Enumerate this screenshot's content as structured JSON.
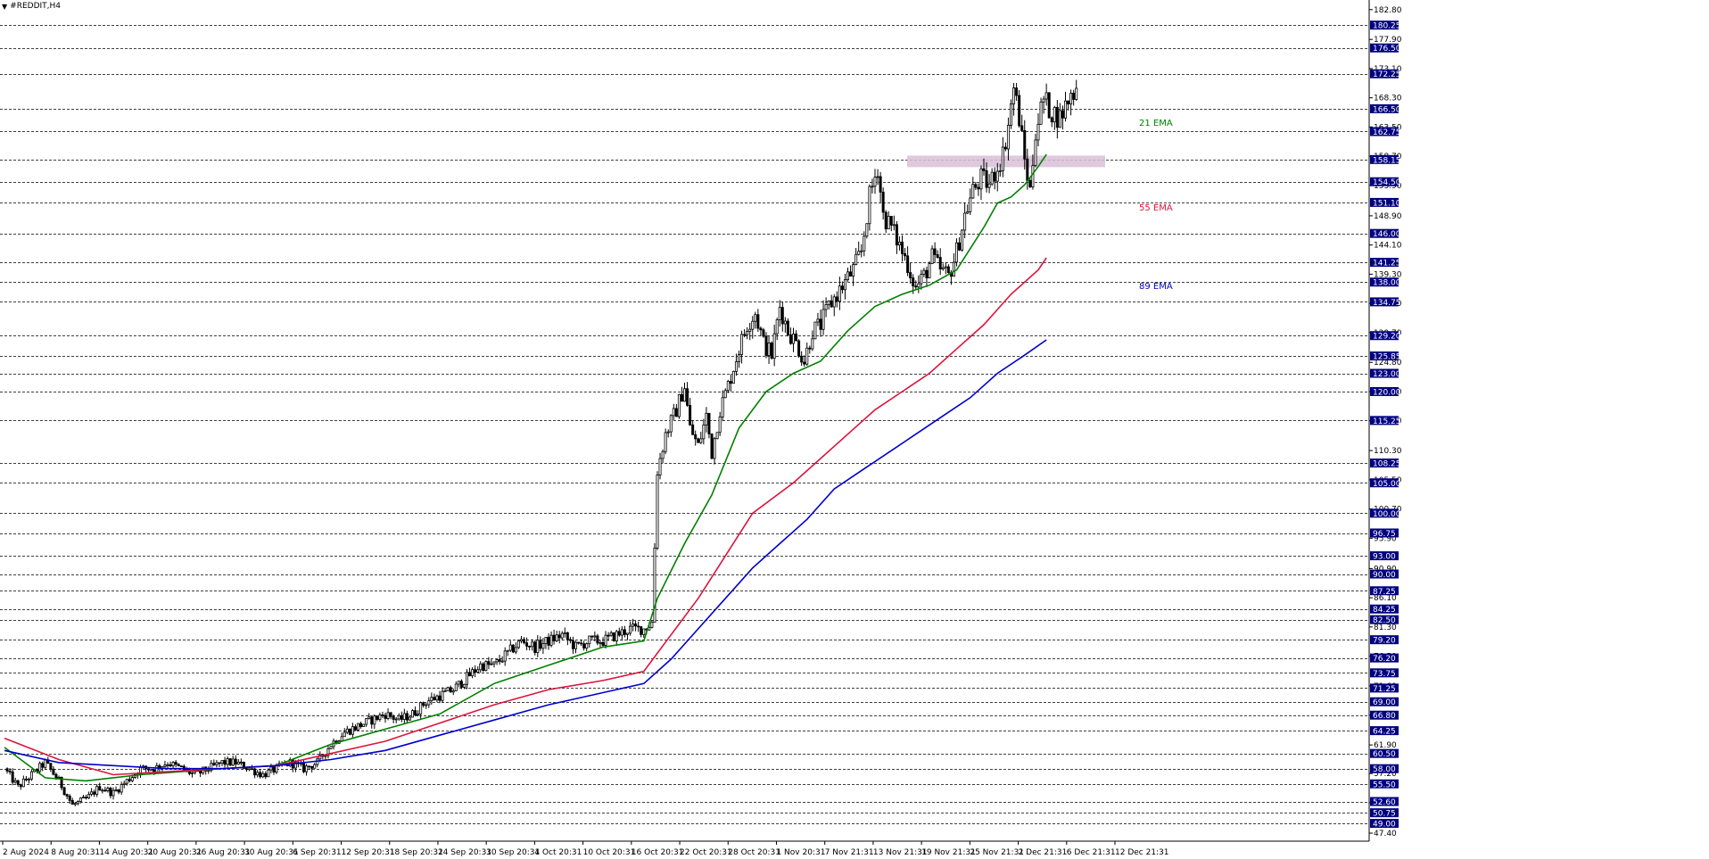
{
  "symbol_title": "#REDDIT,H4",
  "colors": {
    "background": "#ffffff",
    "bull_candle": "#ffffff",
    "bear_candle": "#000000",
    "ema21": "#008000",
    "ema55": "#dc143c",
    "ema89": "#0000cd",
    "zone": "#d8bfd8",
    "level_label_bg": "#000080"
  },
  "chart_data": {
    "type": "candlestick",
    "title": "#REDDIT,H4",
    "ylim": [
      47.4,
      183.5
    ],
    "y_ticks": [
      "182.80",
      "177.90",
      "173.10",
      "168.30",
      "163.50",
      "158.70",
      "153.90",
      "148.90",
      "144.10",
      "139.30",
      "134.50",
      "129.70",
      "124.80",
      "120.00",
      "115.20",
      "110.30",
      "105.50",
      "100.70",
      "95.90",
      "90.90",
      "86.10",
      "81.30",
      "76.50",
      "71.60",
      "66.80",
      "61.90",
      "57.20",
      "52.40",
      "47.40"
    ],
    "level_lines": [
      180.25,
      176.5,
      172.25,
      166.5,
      162.75,
      158.15,
      154.5,
      151.1,
      146.0,
      141.25,
      138.0,
      134.75,
      129.2,
      125.85,
      123.0,
      120.0,
      115.25,
      108.25,
      105.0,
      100.0,
      96.75,
      93.0,
      90.0,
      87.25,
      84.25,
      82.5,
      79.2,
      76.2,
      73.75,
      71.25,
      69.0,
      66.8,
      64.25,
      60.5,
      58.0,
      55.5,
      52.6,
      50.75,
      49.0
    ],
    "level_labels": [
      "180.25",
      "176.50",
      "172.25",
      "166.50",
      "162.75",
      "158.15",
      "154.50",
      "151.10",
      "146.00",
      "141.25",
      "138.00",
      "134.75",
      "129.20",
      "125.85",
      "123.00",
      "120.00",
      "115.25",
      "108.25",
      "105.00",
      "100.00",
      "96.75",
      "93.00",
      "90.00",
      "87.25",
      "84.25",
      "82.50",
      "79.20",
      "76.20",
      "73.75",
      "71.25",
      "69.00",
      "66.80",
      "64.25",
      "60.50",
      "58.00",
      "55.50",
      "52.60",
      "50.75",
      "49.00"
    ],
    "x_labels": [
      "2 Aug 2024",
      "8 Aug 20:31",
      "14 Aug 20:31",
      "20 Aug 20:31",
      "26 Aug 20:31",
      "30 Aug 20:31",
      "6 Sep 20:31",
      "12 Sep 20:31",
      "18 Sep 20:31",
      "24 Sep 20:31",
      "30 Sep 20:31",
      "4 Oct 20:31",
      "10 Oct 20:31",
      "16 Oct 20:31",
      "22 Oct 20:31",
      "28 Oct 20:31",
      "1 Nov 20:31",
      "7 Nov 21:31",
      "13 Nov 21:31",
      "19 Nov 21:31",
      "25 Nov 21:31",
      "2 Dec 21:31",
      "6 Dec 21:31",
      "12 Dec 21:31"
    ],
    "close_path": [
      [
        0,
        58
      ],
      [
        5,
        55
      ],
      [
        10,
        57
      ],
      [
        15,
        59
      ],
      [
        20,
        56
      ],
      [
        25,
        52
      ],
      [
        30,
        53
      ],
      [
        35,
        55
      ],
      [
        40,
        54
      ],
      [
        45,
        56
      ],
      [
        50,
        58
      ],
      [
        55,
        58
      ],
      [
        60,
        59
      ],
      [
        65,
        58
      ],
      [
        70,
        57
      ],
      [
        75,
        58
      ],
      [
        80,
        59
      ],
      [
        85,
        59
      ],
      [
        90,
        58
      ],
      [
        95,
        57
      ],
      [
        100,
        58
      ],
      [
        105,
        59
      ],
      [
        110,
        58
      ],
      [
        115,
        59
      ],
      [
        120,
        62
      ],
      [
        125,
        64
      ],
      [
        130,
        65
      ],
      [
        135,
        66
      ],
      [
        140,
        67
      ],
      [
        145,
        66
      ],
      [
        150,
        67
      ],
      [
        155,
        69
      ],
      [
        160,
        70
      ],
      [
        165,
        71
      ],
      [
        170,
        73
      ],
      [
        175,
        75
      ],
      [
        180,
        75
      ],
      [
        185,
        77
      ],
      [
        190,
        79
      ],
      [
        195,
        78
      ],
      [
        200,
        79
      ],
      [
        205,
        80
      ],
      [
        210,
        78
      ],
      [
        215,
        79
      ],
      [
        220,
        79
      ],
      [
        225,
        80
      ],
      [
        230,
        81
      ],
      [
        235,
        81
      ],
      [
        238,
        82
      ],
      [
        240,
        107
      ],
      [
        243,
        113
      ],
      [
        247,
        117
      ],
      [
        250,
        121
      ],
      [
        252,
        114
      ],
      [
        255,
        111
      ],
      [
        258,
        116
      ],
      [
        260,
        110
      ],
      [
        263,
        117
      ],
      [
        266,
        121
      ],
      [
        268,
        124
      ],
      [
        270,
        127
      ],
      [
        273,
        131
      ],
      [
        276,
        133
      ],
      [
        279,
        128
      ],
      [
        282,
        126
      ],
      [
        285,
        134
      ],
      [
        288,
        130
      ],
      [
        291,
        128
      ],
      [
        294,
        125
      ],
      [
        297,
        130
      ],
      [
        300,
        131
      ],
      [
        303,
        134
      ],
      [
        306,
        136
      ],
      [
        309,
        138
      ],
      [
        312,
        140
      ],
      [
        315,
        143
      ],
      [
        318,
        152
      ],
      [
        321,
        157
      ],
      [
        323,
        149
      ],
      [
        326,
        147
      ],
      [
        329,
        144
      ],
      [
        332,
        141
      ],
      [
        335,
        137
      ],
      [
        338,
        139
      ],
      [
        341,
        142
      ],
      [
        344,
        140
      ],
      [
        347,
        139
      ],
      [
        350,
        143
      ],
      [
        353,
        149
      ],
      [
        356,
        153
      ],
      [
        359,
        155
      ],
      [
        362,
        154
      ],
      [
        365,
        157
      ],
      [
        367,
        159
      ],
      [
        369,
        164
      ],
      [
        371,
        170
      ],
      [
        373,
        165
      ],
      [
        375,
        158
      ],
      [
        377,
        153
      ],
      [
        379,
        163
      ],
      [
        382,
        168
      ],
      [
        385,
        166
      ],
      [
        388,
        165
      ],
      [
        391,
        168
      ],
      [
        394,
        170
      ]
    ],
    "series": [
      {
        "name": "21 EMA",
        "values": [
          [
            0,
            61.5
          ],
          [
            15,
            56.5
          ],
          [
            30,
            56
          ],
          [
            50,
            57
          ],
          [
            80,
            58
          ],
          [
            100,
            58.5
          ],
          [
            120,
            62
          ],
          [
            140,
            64.5
          ],
          [
            160,
            67
          ],
          [
            180,
            72
          ],
          [
            200,
            75
          ],
          [
            220,
            78
          ],
          [
            235,
            79
          ],
          [
            240,
            86
          ],
          [
            250,
            95
          ],
          [
            260,
            103
          ],
          [
            270,
            114
          ],
          [
            280,
            120
          ],
          [
            290,
            123
          ],
          [
            300,
            125
          ],
          [
            310,
            130
          ],
          [
            320,
            134
          ],
          [
            330,
            136
          ],
          [
            340,
            137.5
          ],
          [
            350,
            140
          ],
          [
            360,
            147
          ],
          [
            365,
            151
          ],
          [
            370,
            152
          ],
          [
            375,
            154
          ],
          [
            380,
            157
          ],
          [
            383,
            159
          ]
        ]
      },
      {
        "name": "55 EMA",
        "values": [
          [
            0,
            63
          ],
          [
            20,
            59.5
          ],
          [
            40,
            57
          ],
          [
            60,
            57.5
          ],
          [
            80,
            58
          ],
          [
            100,
            58.5
          ],
          [
            120,
            60.5
          ],
          [
            140,
            62.5
          ],
          [
            160,
            65.5
          ],
          [
            180,
            68.5
          ],
          [
            200,
            71
          ],
          [
            220,
            72.5
          ],
          [
            235,
            74
          ],
          [
            245,
            80
          ],
          [
            255,
            86
          ],
          [
            265,
            93
          ],
          [
            275,
            100
          ],
          [
            290,
            105
          ],
          [
            300,
            109
          ],
          [
            310,
            113
          ],
          [
            320,
            117
          ],
          [
            330,
            120
          ],
          [
            340,
            123
          ],
          [
            350,
            127
          ],
          [
            360,
            131
          ],
          [
            370,
            136
          ],
          [
            380,
            140
          ],
          [
            383,
            142
          ]
        ]
      },
      {
        "name": "89 EMA",
        "values": [
          [
            0,
            61
          ],
          [
            20,
            59
          ],
          [
            40,
            58.5
          ],
          [
            60,
            58
          ],
          [
            80,
            58
          ],
          [
            100,
            58.5
          ],
          [
            120,
            59.5
          ],
          [
            140,
            61
          ],
          [
            160,
            63.5
          ],
          [
            180,
            66
          ],
          [
            200,
            68.5
          ],
          [
            220,
            70.5
          ],
          [
            235,
            72
          ],
          [
            245,
            76
          ],
          [
            255,
            81
          ],
          [
            265,
            86
          ],
          [
            275,
            91
          ],
          [
            285,
            95
          ],
          [
            295,
            99
          ],
          [
            305,
            104
          ],
          [
            315,
            107
          ],
          [
            325,
            110
          ],
          [
            335,
            113
          ],
          [
            345,
            116
          ],
          [
            355,
            119
          ],
          [
            365,
            123
          ],
          [
            375,
            126
          ],
          [
            383,
            128.5
          ]
        ]
      }
    ],
    "zone": [
      156.9,
      158.8
    ]
  }
}
